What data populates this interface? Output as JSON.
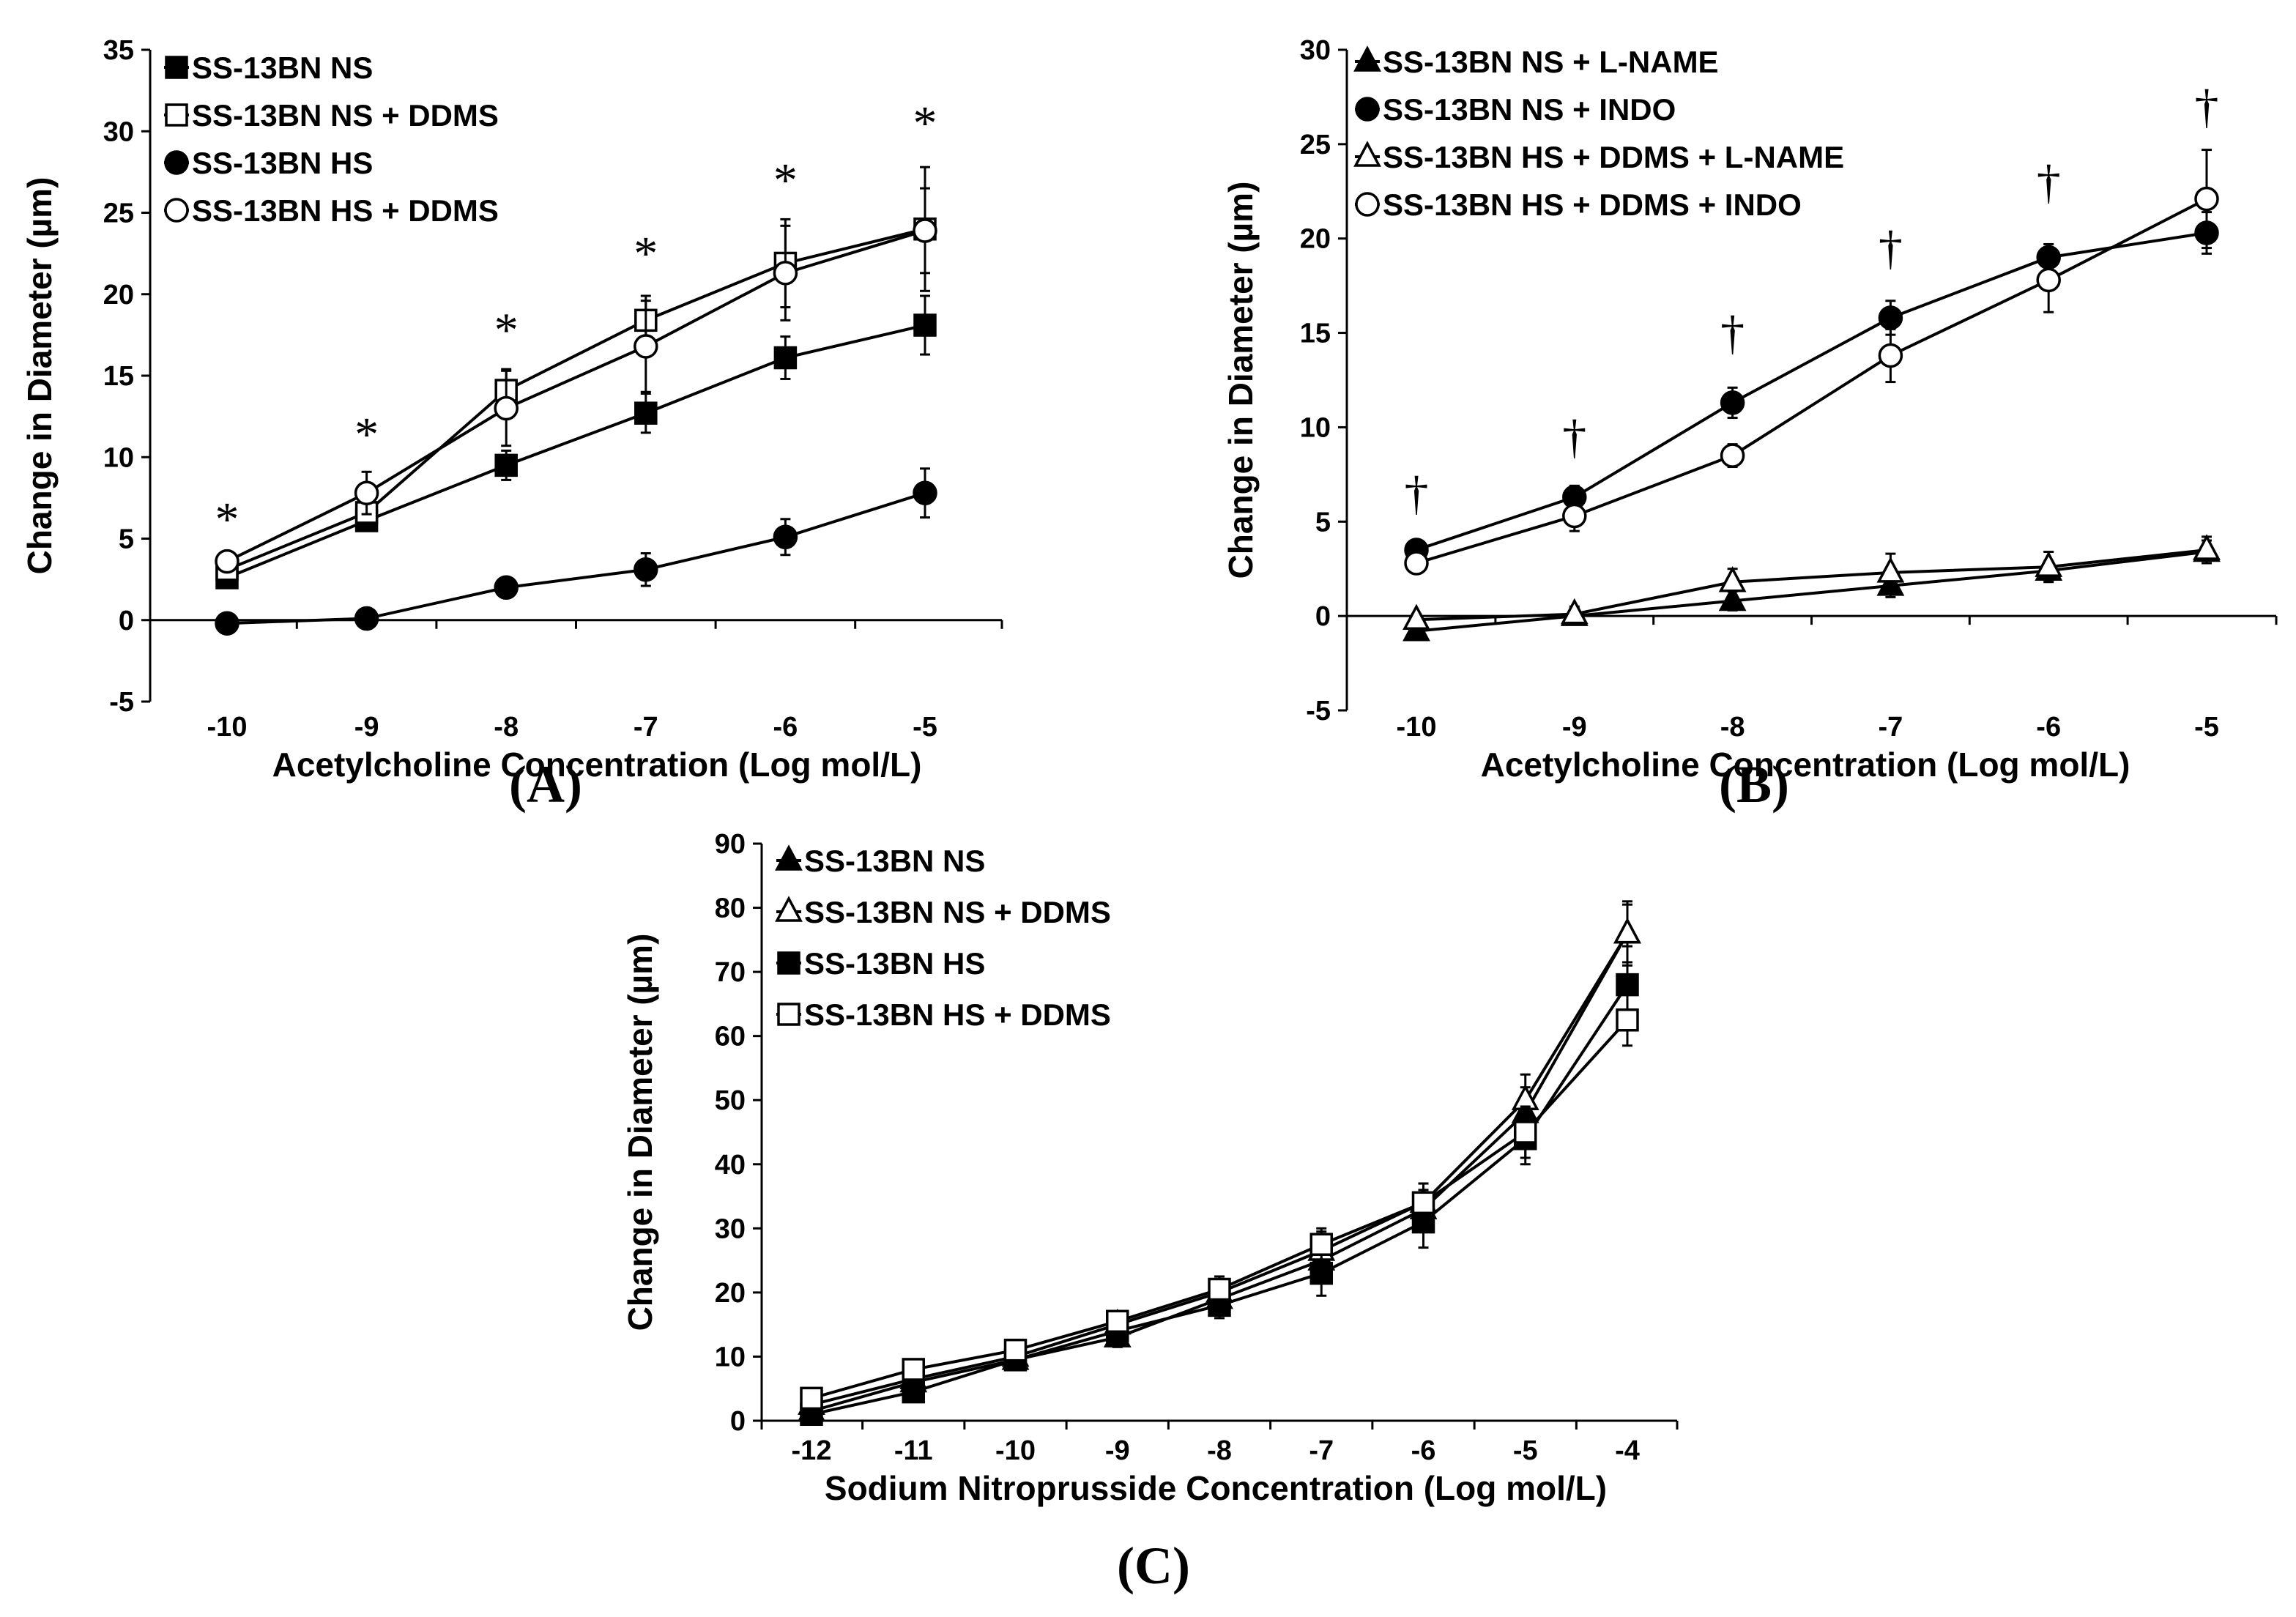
{
  "chart_data": [
    {
      "id": "A",
      "type": "line",
      "panel_label": "A",
      "xlabel": "Acetylcholine Concentration (Log mol/L)",
      "ylabel": "Change in Diameter (µm)",
      "x": [
        -10,
        -9,
        -8,
        -7,
        -6,
        -5
      ],
      "x_ticks": [
        "-10",
        "-9",
        "-8",
        "-7",
        "-6",
        "-5"
      ],
      "ylim": [
        -5,
        35
      ],
      "y_ticks": [
        -5,
        0,
        5,
        10,
        15,
        20,
        25,
        30,
        35
      ],
      "legend_position": "top-left",
      "series": [
        {
          "name": "SS-13BN NS",
          "marker": "square",
          "fill": "filled",
          "values": [
            2.6,
            6.1,
            9.5,
            12.7,
            16.1,
            18.1
          ],
          "errors": [
            0.4,
            0.6,
            0.9,
            1.2,
            1.3,
            1.8
          ]
        },
        {
          "name": "SS-13BN NS + DDMS",
          "marker": "square",
          "fill": "open",
          "values": [
            3.1,
            6.6,
            14.1,
            18.4,
            21.9,
            24.0
          ],
          "errors": [
            0.5,
            0.8,
            1.3,
            1.5,
            2.7,
            3.8
          ]
        },
        {
          "name": "SS-13BN HS",
          "marker": "circle",
          "fill": "filled",
          "values": [
            -0.2,
            0.1,
            2.0,
            3.1,
            5.1,
            7.8
          ],
          "errors": [
            0.3,
            0.3,
            0.5,
            1.0,
            1.1,
            1.5
          ]
        },
        {
          "name": "SS-13BN HS + DDMS",
          "marker": "circle",
          "fill": "open",
          "values": [
            3.6,
            7.8,
            13.0,
            16.8,
            21.3,
            23.9
          ],
          "errors": [
            0.6,
            1.3,
            2.3,
            2.8,
            2.9,
            2.6
          ]
        }
      ],
      "annotations": [
        {
          "x": -10,
          "y": 6.2,
          "text": "*"
        },
        {
          "x": -9,
          "y": 11.4,
          "text": "*"
        },
        {
          "x": -8,
          "y": 17.8,
          "text": "*"
        },
        {
          "x": -7,
          "y": 22.5,
          "text": "*"
        },
        {
          "x": -6,
          "y": 27.0,
          "text": "*"
        },
        {
          "x": -5,
          "y": 30.5,
          "text": "*"
        }
      ]
    },
    {
      "id": "B",
      "type": "line",
      "panel_label": "B",
      "xlabel": "Acetylcholine Concentration (Log mol/L)",
      "ylabel": "Change in Diameter (µm)",
      "x": [
        -10,
        -9,
        -8,
        -7,
        -6,
        -5
      ],
      "x_ticks": [
        "-10",
        "-9",
        "-8",
        "-7",
        "-6",
        "-5"
      ],
      "ylim": [
        -5,
        30
      ],
      "y_ticks": [
        -5,
        0,
        5,
        10,
        15,
        20,
        25,
        30
      ],
      "legend_position": "top-left",
      "series": [
        {
          "name": "SS-13BN NS + L-NAME",
          "marker": "triangle",
          "fill": "filled",
          "values": [
            -0.8,
            0.0,
            0.8,
            1.6,
            2.4,
            3.4
          ],
          "errors": [
            0.3,
            0.3,
            0.5,
            0.6,
            0.5,
            0.6
          ]
        },
        {
          "name": "SS-13BN NS + INDO",
          "marker": "circle",
          "fill": "filled",
          "values": [
            3.5,
            6.3,
            11.3,
            15.8,
            19.0,
            20.3
          ],
          "errors": [
            0.4,
            0.6,
            0.8,
            0.9,
            0.7,
            1.1
          ]
        },
        {
          "name": "SS-13BN HS + DDMS + L-NAME",
          "marker": "triangle",
          "fill": "open",
          "values": [
            -0.2,
            0.1,
            1.8,
            2.3,
            2.6,
            3.5
          ],
          "errors": [
            0.3,
            0.4,
            0.7,
            1.0,
            0.8,
            0.7
          ]
        },
        {
          "name": "SS-13BN HS + DDMS + INDO",
          "marker": "circle",
          "fill": "open",
          "values": [
            2.8,
            5.3,
            8.5,
            13.8,
            17.8,
            22.1
          ],
          "errors": [
            0.5,
            0.8,
            0.6,
            1.4,
            1.7,
            2.6
          ]
        }
      ],
      "annotations": [
        {
          "x": -10,
          "y": 6.5,
          "text": "†"
        },
        {
          "x": -9,
          "y": 9.5,
          "text": "†"
        },
        {
          "x": -8,
          "y": 15.0,
          "text": "†"
        },
        {
          "x": -7,
          "y": 19.5,
          "text": "†"
        },
        {
          "x": -6,
          "y": 23.0,
          "text": "†"
        },
        {
          "x": -5,
          "y": 27.0,
          "text": "†"
        }
      ]
    },
    {
      "id": "C",
      "type": "line",
      "panel_label": "C",
      "xlabel": "Sodium Nitroprusside Concentration (Log mol/L)",
      "ylabel": "Change in Diameter (µm)",
      "x": [
        -12,
        -11,
        -10,
        -9,
        -8,
        -7,
        -6,
        -5,
        -4
      ],
      "x_ticks": [
        "-12",
        "-11",
        "-10",
        "-9",
        "-8",
        "-7",
        "-6",
        "-5",
        "-4"
      ],
      "ylim": [
        0,
        90
      ],
      "y_ticks": [
        0,
        10,
        20,
        30,
        40,
        50,
        60,
        70,
        80,
        90
      ],
      "legend_position": "top-left",
      "series": [
        {
          "name": "SS-13BN NS",
          "marker": "triangle",
          "fill": "filled",
          "values": [
            1.5,
            6.0,
            9.5,
            13.0,
            19.0,
            25.0,
            33.0,
            48.0,
            76.0
          ],
          "errors": [
            0.5,
            1.0,
            1.0,
            1.5,
            2.0,
            2.5,
            3.0,
            4.0,
            4.5
          ]
        },
        {
          "name": "SS-13BN NS + DDMS",
          "marker": "triangle",
          "fill": "open",
          "values": [
            2.5,
            6.5,
            10.0,
            15.0,
            20.0,
            26.5,
            34.0,
            50.0,
            76.0
          ],
          "errors": [
            0.8,
            1.0,
            1.2,
            2.0,
            2.5,
            3.0,
            3.0,
            4.0,
            5.0
          ]
        },
        {
          "name": "SS-13BN HS",
          "marker": "square",
          "fill": "filled",
          "values": [
            1.0,
            4.5,
            9.5,
            14.0,
            18.0,
            23.0,
            31.0,
            44.0,
            68.0
          ],
          "errors": [
            0.5,
            1.0,
            1.5,
            2.0,
            2.0,
            3.5,
            4.0,
            4.0,
            6.0
          ]
        },
        {
          "name": "SS-13BN HS + DDMS",
          "marker": "square",
          "fill": "open",
          "values": [
            3.5,
            8.0,
            11.0,
            15.5,
            20.5,
            27.5,
            34.0,
            45.0,
            62.5
          ],
          "errors": [
            0.5,
            1.0,
            1.0,
            1.5,
            2.0,
            2.5,
            3.0,
            4.0,
            4.0
          ]
        }
      ],
      "annotations": []
    }
  ]
}
